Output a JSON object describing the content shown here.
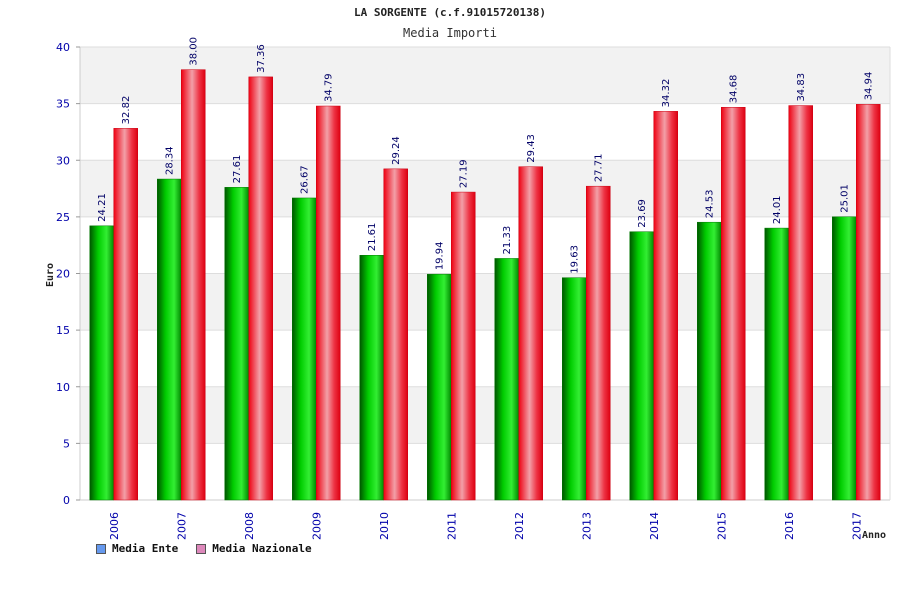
{
  "chart_data": {
    "type": "bar",
    "title": "LA SORGENTE (c.f.91015720138)",
    "subtitle": "Media Importi",
    "ylabel": "Euro",
    "xlabel": "Anno",
    "ylim": [
      0,
      40
    ],
    "yticks": [
      0,
      5,
      10,
      15,
      20,
      25,
      30,
      35,
      40
    ],
    "categories": [
      "2006",
      "2007",
      "2008",
      "2009",
      "2010",
      "2011",
      "2012",
      "2013",
      "2014",
      "2015",
      "2016",
      "2017"
    ],
    "series": [
      {
        "name": "Media Ente",
        "values": [
          24.21,
          28.34,
          27.61,
          26.67,
          21.61,
          19.94,
          21.33,
          19.63,
          23.69,
          24.53,
          24.01,
          25.01
        ],
        "labels": [
          "24.21",
          "28.34",
          "27.61",
          "26.67",
          "21.61",
          "19.94",
          "21.33",
          "19.63",
          "23.69",
          "24.53",
          "24.01",
          "25.01"
        ],
        "color": "#00aa00",
        "legend_color": "#6699ee"
      },
      {
        "name": "Media Nazionale",
        "values": [
          32.82,
          38.0,
          37.36,
          34.79,
          29.24,
          27.19,
          29.43,
          27.71,
          34.32,
          34.68,
          34.83,
          34.94
        ],
        "labels": [
          "32.82",
          "38.00",
          "37.36",
          "34.79",
          "29.24",
          "27.19",
          "29.43",
          "27.71",
          "34.32",
          "34.68",
          "34.83",
          "34.94"
        ],
        "color": "#ee0011",
        "legend_color": "#dd88bb"
      }
    ],
    "grid": true,
    "legend_position": "bottom-left"
  }
}
